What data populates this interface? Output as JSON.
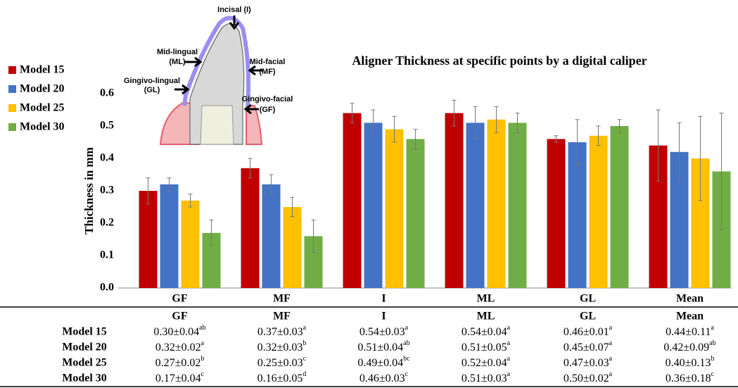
{
  "chart_data": {
    "type": "bar",
    "title": "Aligner Thickness at specific points by a digital caliper",
    "y_label": "Thickness in mm",
    "categories": [
      "GF",
      "MF",
      "I",
      "ML",
      "GL",
      "Mean"
    ],
    "series": [
      {
        "name": "Model 15",
        "color": "#c00000",
        "values": [
          0.3,
          0.37,
          0.54,
          0.54,
          0.46,
          0.44
        ],
        "errors": [
          0.04,
          0.03,
          0.03,
          0.04,
          0.01,
          0.11
        ]
      },
      {
        "name": "Model 20",
        "color": "#4472c4",
        "values": [
          0.32,
          0.32,
          0.51,
          0.51,
          0.45,
          0.42
        ],
        "errors": [
          0.02,
          0.03,
          0.04,
          0.05,
          0.07,
          0.09
        ]
      },
      {
        "name": "Model 25",
        "color": "#ffc000",
        "values": [
          0.27,
          0.25,
          0.49,
          0.52,
          0.47,
          0.4
        ],
        "errors": [
          0.02,
          0.03,
          0.04,
          0.04,
          0.03,
          0.13
        ]
      },
      {
        "name": "Model 30",
        "color": "#70ad47",
        "values": [
          0.17,
          0.16,
          0.46,
          0.51,
          0.5,
          0.36
        ],
        "errors": [
          0.04,
          0.05,
          0.03,
          0.03,
          0.02,
          0.18
        ]
      }
    ],
    "ylim": [
      0,
      0.6
    ],
    "yticks": [
      {
        "value": 0,
        "label": "0.0"
      },
      0.1,
      0.2,
      0.3,
      0.4,
      0.5,
      0.6
    ],
    "legend": "left"
  },
  "diagram": {
    "labels": [
      {
        "lines": [
          "Incisal (I)"
        ]
      },
      {
        "lines": [
          "Mid-lingual",
          "(ML)"
        ]
      },
      {
        "lines": [
          "Mid-facial",
          "(MF)"
        ]
      },
      {
        "lines": [
          "Gingivo-lingual",
          "(GL)"
        ]
      },
      {
        "lines": [
          "Gingivo-facial",
          "(GF)"
        ]
      }
    ]
  },
  "table": {
    "header": [
      "GF",
      "MF",
      "I",
      "ML",
      "GL",
      "Mean"
    ],
    "rows": [
      {
        "label": "Model 15",
        "cells": [
          {
            "value": "0.30±0.04",
            "sup": "ab"
          },
          {
            "value": "0.37±0.03",
            "sup": "a"
          },
          {
            "value": "0.54±0.03",
            "sup": "a"
          },
          {
            "value": "0.54±0.04",
            "sup": "a"
          },
          {
            "value": "0.46±0.01",
            "sup": "a"
          },
          {
            "value": "0.44±0.11",
            "sup": "a"
          }
        ]
      },
      {
        "label": "Model 20",
        "cells": [
          {
            "value": "0.32±0.02",
            "sup": "a"
          },
          {
            "value": "0.32±0.03",
            "sup": "b"
          },
          {
            "value": "0.51±0.04",
            "sup": "ab"
          },
          {
            "value": "0.51±0.05",
            "sup": "a"
          },
          {
            "value": "0.45±0.07",
            "sup": "a"
          },
          {
            "value": "0.42±0.09",
            "sup": "ab"
          }
        ]
      },
      {
        "label": "Model 25",
        "cells": [
          {
            "value": "0.27±0.02",
            "sup": "b"
          },
          {
            "value": "0.25±0.03",
            "sup": "c"
          },
          {
            "value": "0.49±0.04",
            "sup": "bc"
          },
          {
            "value": "0.52±0.04",
            "sup": "a"
          },
          {
            "value": "0.47±0.03",
            "sup": "a"
          },
          {
            "value": "0.40±0.13",
            "sup": "b"
          }
        ]
      },
      {
        "label": "Model 30",
        "cells": [
          {
            "value": "0.17±0.04",
            "sup": "c"
          },
          {
            "value": "0.16±0.05",
            "sup": "d"
          },
          {
            "value": "0.46±0.03",
            "sup": "c"
          },
          {
            "value": "0.51±0.03",
            "sup": "a"
          },
          {
            "value": "0.50±0.02",
            "sup": "a"
          },
          {
            "value": "0.36±0.18",
            "sup": "c"
          }
        ]
      }
    ]
  }
}
